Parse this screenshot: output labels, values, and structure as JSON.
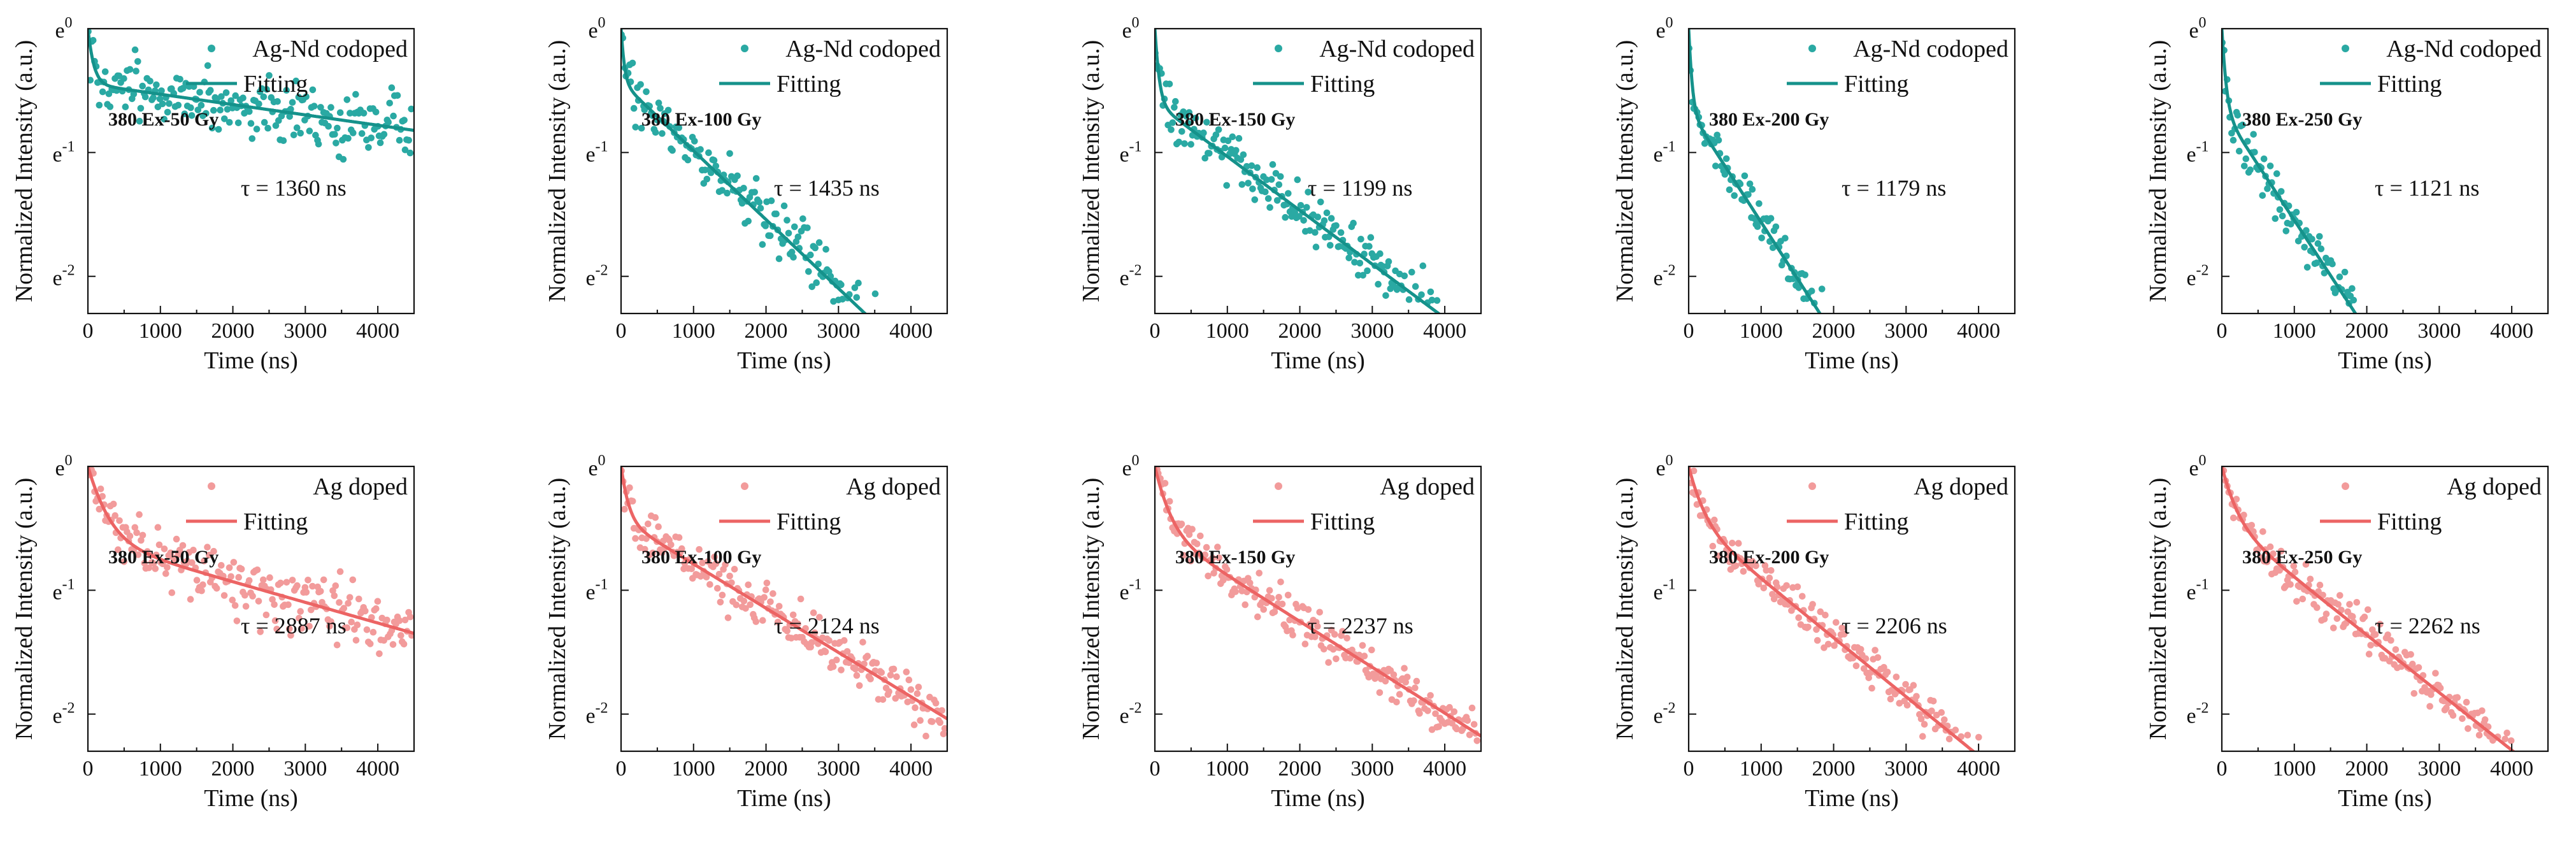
{
  "chart_data": {
    "type": "scatter",
    "layout": "2 rows x 5 panels (log-scale decay curves)",
    "shared": {
      "xlabel": "Time (ns)",
      "ylabel": "Normalized Intensity (a.u.)",
      "xlim": [
        0,
        4500
      ],
      "xticks": [
        0,
        1000,
        2000,
        3000,
        4000
      ],
      "x_tick_labels": [
        "0",
        "1000",
        "2000",
        "3000",
        "4000"
      ],
      "ylim_exponent": [
        -2.3,
        0
      ],
      "yticks": [
        0,
        -1,
        -2
      ],
      "y_tick_labels": [
        {
          "base": "e",
          "exp": "0"
        },
        {
          "base": "e",
          "exp": "-1"
        },
        {
          "base": "e",
          "exp": "-2"
        }
      ],
      "fit_legend": "Fitting"
    },
    "rows": [
      {
        "series_name": "Ag-Nd codoped",
        "color": "#2aa9a3",
        "fit_color": "#15928b",
        "panels": [
          {
            "condition": "380 Ex-50 Gy",
            "tau_text": "τ = 1360 ns",
            "tau_ns": 1360,
            "fit": {
              "a": 0.36,
              "b": 0.64,
              "t_fast": 70,
              "t_slow": 12000
            },
            "noise": 0.22
          },
          {
            "condition": "380 Ex-100 Gy",
            "tau_text": "τ = 1435 ns",
            "tau_ns": 1435,
            "fit": {
              "a": 0.35,
              "b": 0.65,
              "t_fast": 40,
              "t_slow": 1800
            },
            "noise": 0.18
          },
          {
            "condition": "380 Ex-150 Gy",
            "tau_text": "τ = 1199 ns",
            "tau_ns": 1199,
            "fit": {
              "a": 0.45,
              "b": 0.55,
              "t_fast": 50,
              "t_slow": 2300
            },
            "noise": 0.18
          },
          {
            "condition": "380 Ex-200 Gy",
            "tau_text": "τ = 1179 ns",
            "tau_ns": 1179,
            "fit": {
              "a": 0.48,
              "b": 0.52,
              "t_fast": 40,
              "t_slow": 1100
            },
            "noise": 0.15
          },
          {
            "condition": "380 Ex-250 Gy",
            "tau_text": "τ = 1121 ns",
            "tau_ns": 1121,
            "fit": {
              "a": 0.48,
              "b": 0.52,
              "t_fast": 50,
              "t_slow": 1120
            },
            "noise": 0.15
          }
        ]
      },
      {
        "series_name": "Ag doped",
        "color": "#f29b9b",
        "fit_color": "#ec6464",
        "panels": [
          {
            "condition": "380 Ex-50 Gy",
            "tau_text": "τ = 2887 ns",
            "tau_ns": 2887,
            "fit": {
              "a": 0.45,
              "b": 0.55,
              "t_fast": 240,
              "t_slow": 6000
            },
            "noise": 0.2
          },
          {
            "condition": "380 Ex-100 Gy",
            "tau_text": "τ = 2124 ns",
            "tau_ns": 2124,
            "fit": {
              "a": 0.35,
              "b": 0.65,
              "t_fast": 90,
              "t_slow": 2800
            },
            "noise": 0.16
          },
          {
            "condition": "380 Ex-150 Gy",
            "tau_text": "τ = 2237 ns",
            "tau_ns": 2237,
            "fit": {
              "a": 0.4,
              "b": 0.6,
              "t_fast": 180,
              "t_slow": 2700
            },
            "noise": 0.14
          },
          {
            "condition": "380 Ex-200 Gy",
            "tau_text": "τ = 2206 ns",
            "tau_ns": 2206,
            "fit": {
              "a": 0.35,
              "b": 0.65,
              "t_fast": 180,
              "t_slow": 2100
            },
            "noise": 0.13
          },
          {
            "condition": "380 Ex-250 Gy",
            "tau_text": "τ = 2262 ns",
            "tau_ns": 2262,
            "fit": {
              "a": 0.35,
              "b": 0.65,
              "t_fast": 180,
              "t_slow": 2150
            },
            "noise": 0.13
          }
        ]
      }
    ]
  }
}
